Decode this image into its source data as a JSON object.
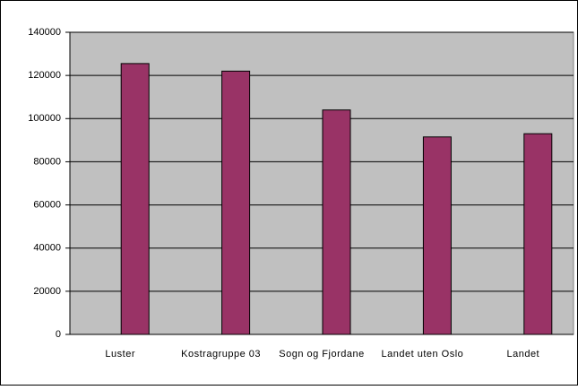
{
  "chart_data": {
    "type": "bar",
    "categories": [
      "Luster",
      "Kostragruppe 03",
      "Sogn og Fjordane",
      "Landet uten Oslo",
      "Landet"
    ],
    "values": [
      125500,
      122000,
      104000,
      91500,
      93000
    ],
    "color": "#993366",
    "ylim": [
      0,
      140000
    ],
    "yticks": [
      0,
      20000,
      40000,
      60000,
      80000,
      100000,
      120000,
      140000
    ],
    "grid": true
  }
}
